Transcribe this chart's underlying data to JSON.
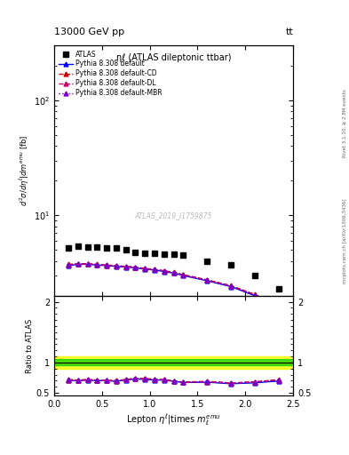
{
  "title_top": "13000 GeV pp",
  "title_top_right": "tt",
  "plot_title": "ηℓ (ATLAS dileptonic ttbar)",
  "watermark": "ATLAS_2019_I1759875",
  "ylabel_main": "d²σ / dηℓ|dm^{emu} [fb]",
  "ylabel_ratio": "Ratio to ATLAS",
  "right_label_top": "Rivet 3.1.10, ≥ 2.8M events",
  "right_label_bot": "mcplots.cern.ch [arXiv:1306.3436]",
  "atlas_x": [
    0.15,
    0.25,
    0.35,
    0.45,
    0.55,
    0.65,
    0.75,
    0.85,
    0.95,
    1.05,
    1.15,
    1.25,
    1.35,
    1.6,
    1.85,
    2.1,
    2.35
  ],
  "atlas_y": [
    5.2,
    5.4,
    5.3,
    5.3,
    5.25,
    5.2,
    5.0,
    4.8,
    4.7,
    4.7,
    4.6,
    4.6,
    4.5,
    4.0,
    3.7,
    3.0,
    2.3
  ],
  "pythia_x": [
    0.15,
    0.25,
    0.35,
    0.45,
    0.55,
    0.65,
    0.75,
    0.85,
    0.95,
    1.05,
    1.15,
    1.25,
    1.35,
    1.6,
    1.85,
    2.1,
    2.35
  ],
  "pythia_default_y": [
    3.65,
    3.75,
    3.75,
    3.7,
    3.65,
    3.6,
    3.55,
    3.5,
    3.4,
    3.35,
    3.25,
    3.15,
    3.0,
    2.7,
    2.4,
    2.0,
    1.6
  ],
  "pythia_cd_y": [
    3.75,
    3.8,
    3.8,
    3.75,
    3.7,
    3.65,
    3.6,
    3.55,
    3.45,
    3.4,
    3.3,
    3.2,
    3.05,
    2.75,
    2.45,
    2.05,
    1.65
  ],
  "pythia_dl_y": [
    3.7,
    3.78,
    3.77,
    3.73,
    3.68,
    3.63,
    3.58,
    3.53,
    3.43,
    3.38,
    3.28,
    3.18,
    3.03,
    2.73,
    2.43,
    2.03,
    1.63
  ],
  "pythia_mbr_y": [
    3.72,
    3.79,
    3.79,
    3.74,
    3.69,
    3.64,
    3.59,
    3.54,
    3.44,
    3.39,
    3.29,
    3.19,
    3.04,
    2.74,
    2.44,
    2.04,
    1.64
  ],
  "ratio_default": [
    0.7,
    0.7,
    0.71,
    0.7,
    0.7,
    0.69,
    0.71,
    0.73,
    0.72,
    0.71,
    0.71,
    0.69,
    0.67,
    0.675,
    0.65,
    0.665,
    0.695
  ],
  "ratio_cd": [
    0.72,
    0.71,
    0.72,
    0.71,
    0.705,
    0.7,
    0.72,
    0.74,
    0.735,
    0.725,
    0.717,
    0.696,
    0.678,
    0.688,
    0.662,
    0.682,
    0.717
  ],
  "ratio_dl": [
    0.712,
    0.7,
    0.715,
    0.708,
    0.703,
    0.698,
    0.717,
    0.735,
    0.73,
    0.72,
    0.713,
    0.692,
    0.674,
    0.683,
    0.658,
    0.677,
    0.71
  ],
  "ratio_mbr": [
    0.715,
    0.702,
    0.717,
    0.71,
    0.705,
    0.7,
    0.719,
    0.737,
    0.732,
    0.722,
    0.715,
    0.694,
    0.676,
    0.685,
    0.66,
    0.679,
    0.712
  ],
  "color_default": "#0000ee",
  "color_cd": "#cc0000",
  "color_dl": "#cc0066",
  "color_mbr": "#7700cc",
  "ylim_main": [
    2.0,
    300
  ],
  "ylim_ratio": [
    0.45,
    2.1
  ],
  "xlim": [
    0.0,
    2.5
  ],
  "band_green_lo": 0.95,
  "band_green_hi": 1.05,
  "band_yellow_lo": 0.9,
  "band_yellow_hi": 1.1
}
